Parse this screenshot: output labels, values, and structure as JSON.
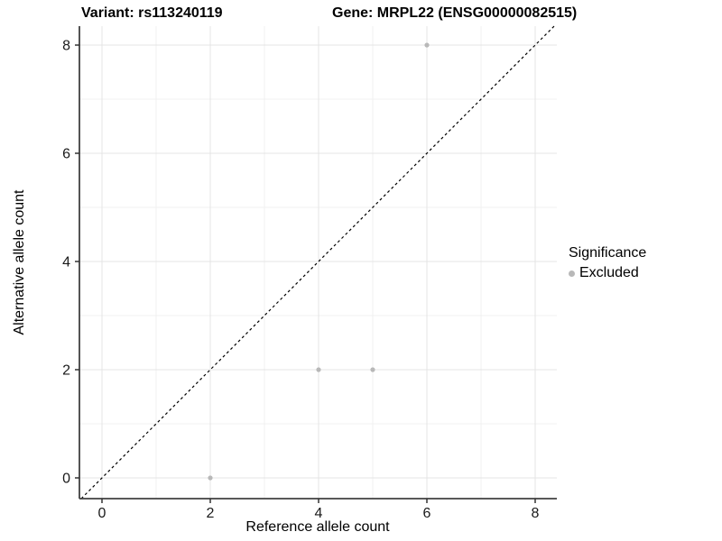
{
  "titles": {
    "variant": "Variant: rs113240119",
    "gene": "Gene: MRPL22 (ENSG00000082515)"
  },
  "legend": {
    "title": "Significance",
    "items": [
      {
        "label": "Excluded",
        "color": "#b8b8b8"
      }
    ]
  },
  "chart_data": {
    "type": "scatter",
    "title": "Variant: rs113240119    Gene: MRPL22 (ENSG00000082515)",
    "xlabel": "Reference allele count",
    "ylabel": "Alternative allele count",
    "xlim": [
      -0.42,
      8.4
    ],
    "ylim": [
      -0.38,
      8.35
    ],
    "x_ticks": [
      0,
      2,
      4,
      6,
      8
    ],
    "y_ticks": [
      0,
      2,
      4,
      6,
      8
    ],
    "grid": "light gray gridlines at every integer (major at even, minor at odd)",
    "legend_position": "right",
    "series": [
      {
        "name": "Excluded",
        "color": "#b8b8b8",
        "points": [
          [
            2,
            0
          ],
          [
            4,
            2
          ],
          [
            5,
            2
          ],
          [
            6,
            8
          ]
        ]
      }
    ],
    "reference_line": {
      "type": "identity y=x",
      "style": "dashed",
      "color": "#000000"
    }
  },
  "colors": {
    "background": "#ffffff",
    "grid_major": "#e4e4e4",
    "grid_minor": "#f1f1f1",
    "axis_line": "#404040",
    "tick": "#333333",
    "tick_label": "#1a1a1a",
    "point": "#b8b8b8",
    "diagonal": "#000000"
  }
}
